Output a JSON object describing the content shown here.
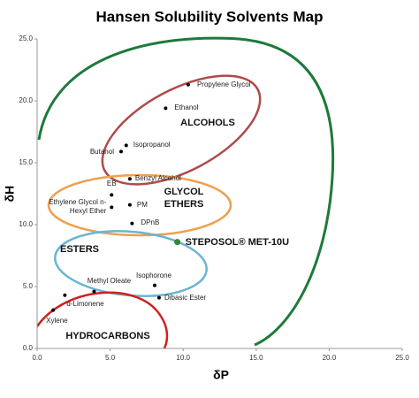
{
  "chart_data": {
    "type": "scatter",
    "title": "Hansen Solubility Solvents Map",
    "xlabel": "δP",
    "ylabel": "δH",
    "xlim": [
      0,
      25
    ],
    "ylim": [
      0,
      25
    ],
    "xticks": [
      {
        "value": 0,
        "label": "0.0"
      },
      {
        "value": 5,
        "label": "5.0"
      },
      {
        "value": 10,
        "label": "10.0"
      },
      {
        "value": 15,
        "label": "15.0"
      },
      {
        "value": 20,
        "label": "20.0"
      },
      {
        "value": 25,
        "label": "25.0"
      }
    ],
    "yticks": [
      {
        "value": 0,
        "label": "0.0"
      },
      {
        "value": 5,
        "label": "5.0"
      },
      {
        "value": 10,
        "label": "10.0"
      },
      {
        "value": 15,
        "label": "15.0"
      },
      {
        "value": 20,
        "label": "20.0"
      },
      {
        "value": 25,
        "label": "25.0"
      }
    ],
    "point_labels": [
      "Propylene Glycol",
      "Ethanol",
      "Isopropanol",
      "Butanol",
      "Benzyl Alcohol",
      "EB",
      "Ethylene Glycol n-Hexyl Ether",
      "PM",
      "DPnB",
      "STEPOSOL® MET-10U",
      "Isophorone",
      "Dibasic Ester",
      "Methyl Oleate",
      "d-Limonene",
      "Xylene"
    ],
    "x": [
      10.35,
      8.8,
      6.1,
      5.75,
      6.35,
      5.1,
      5.1,
      6.35,
      6.5,
      9.6,
      8.05,
      8.35,
      3.9,
      1.9,
      1.1
    ],
    "values": [
      21.3,
      19.4,
      16.4,
      15.9,
      13.7,
      12.4,
      11.4,
      11.6,
      10.1,
      8.6,
      5.1,
      4.1,
      4.6,
      4.3,
      3.1
    ],
    "colors": [
      "#000000",
      "#000000",
      "#000000",
      "#000000",
      "#000000",
      "#000000",
      "#000000",
      "#000000",
      "#000000",
      "#2e8b2e",
      "#000000",
      "#000000",
      "#000000",
      "#000000",
      "#000000"
    ],
    "annotations": [
      "ALCOHOLS",
      "GLYCOL ETHERS",
      "ESTERS",
      "HYDROCARBONS"
    ]
  }
}
